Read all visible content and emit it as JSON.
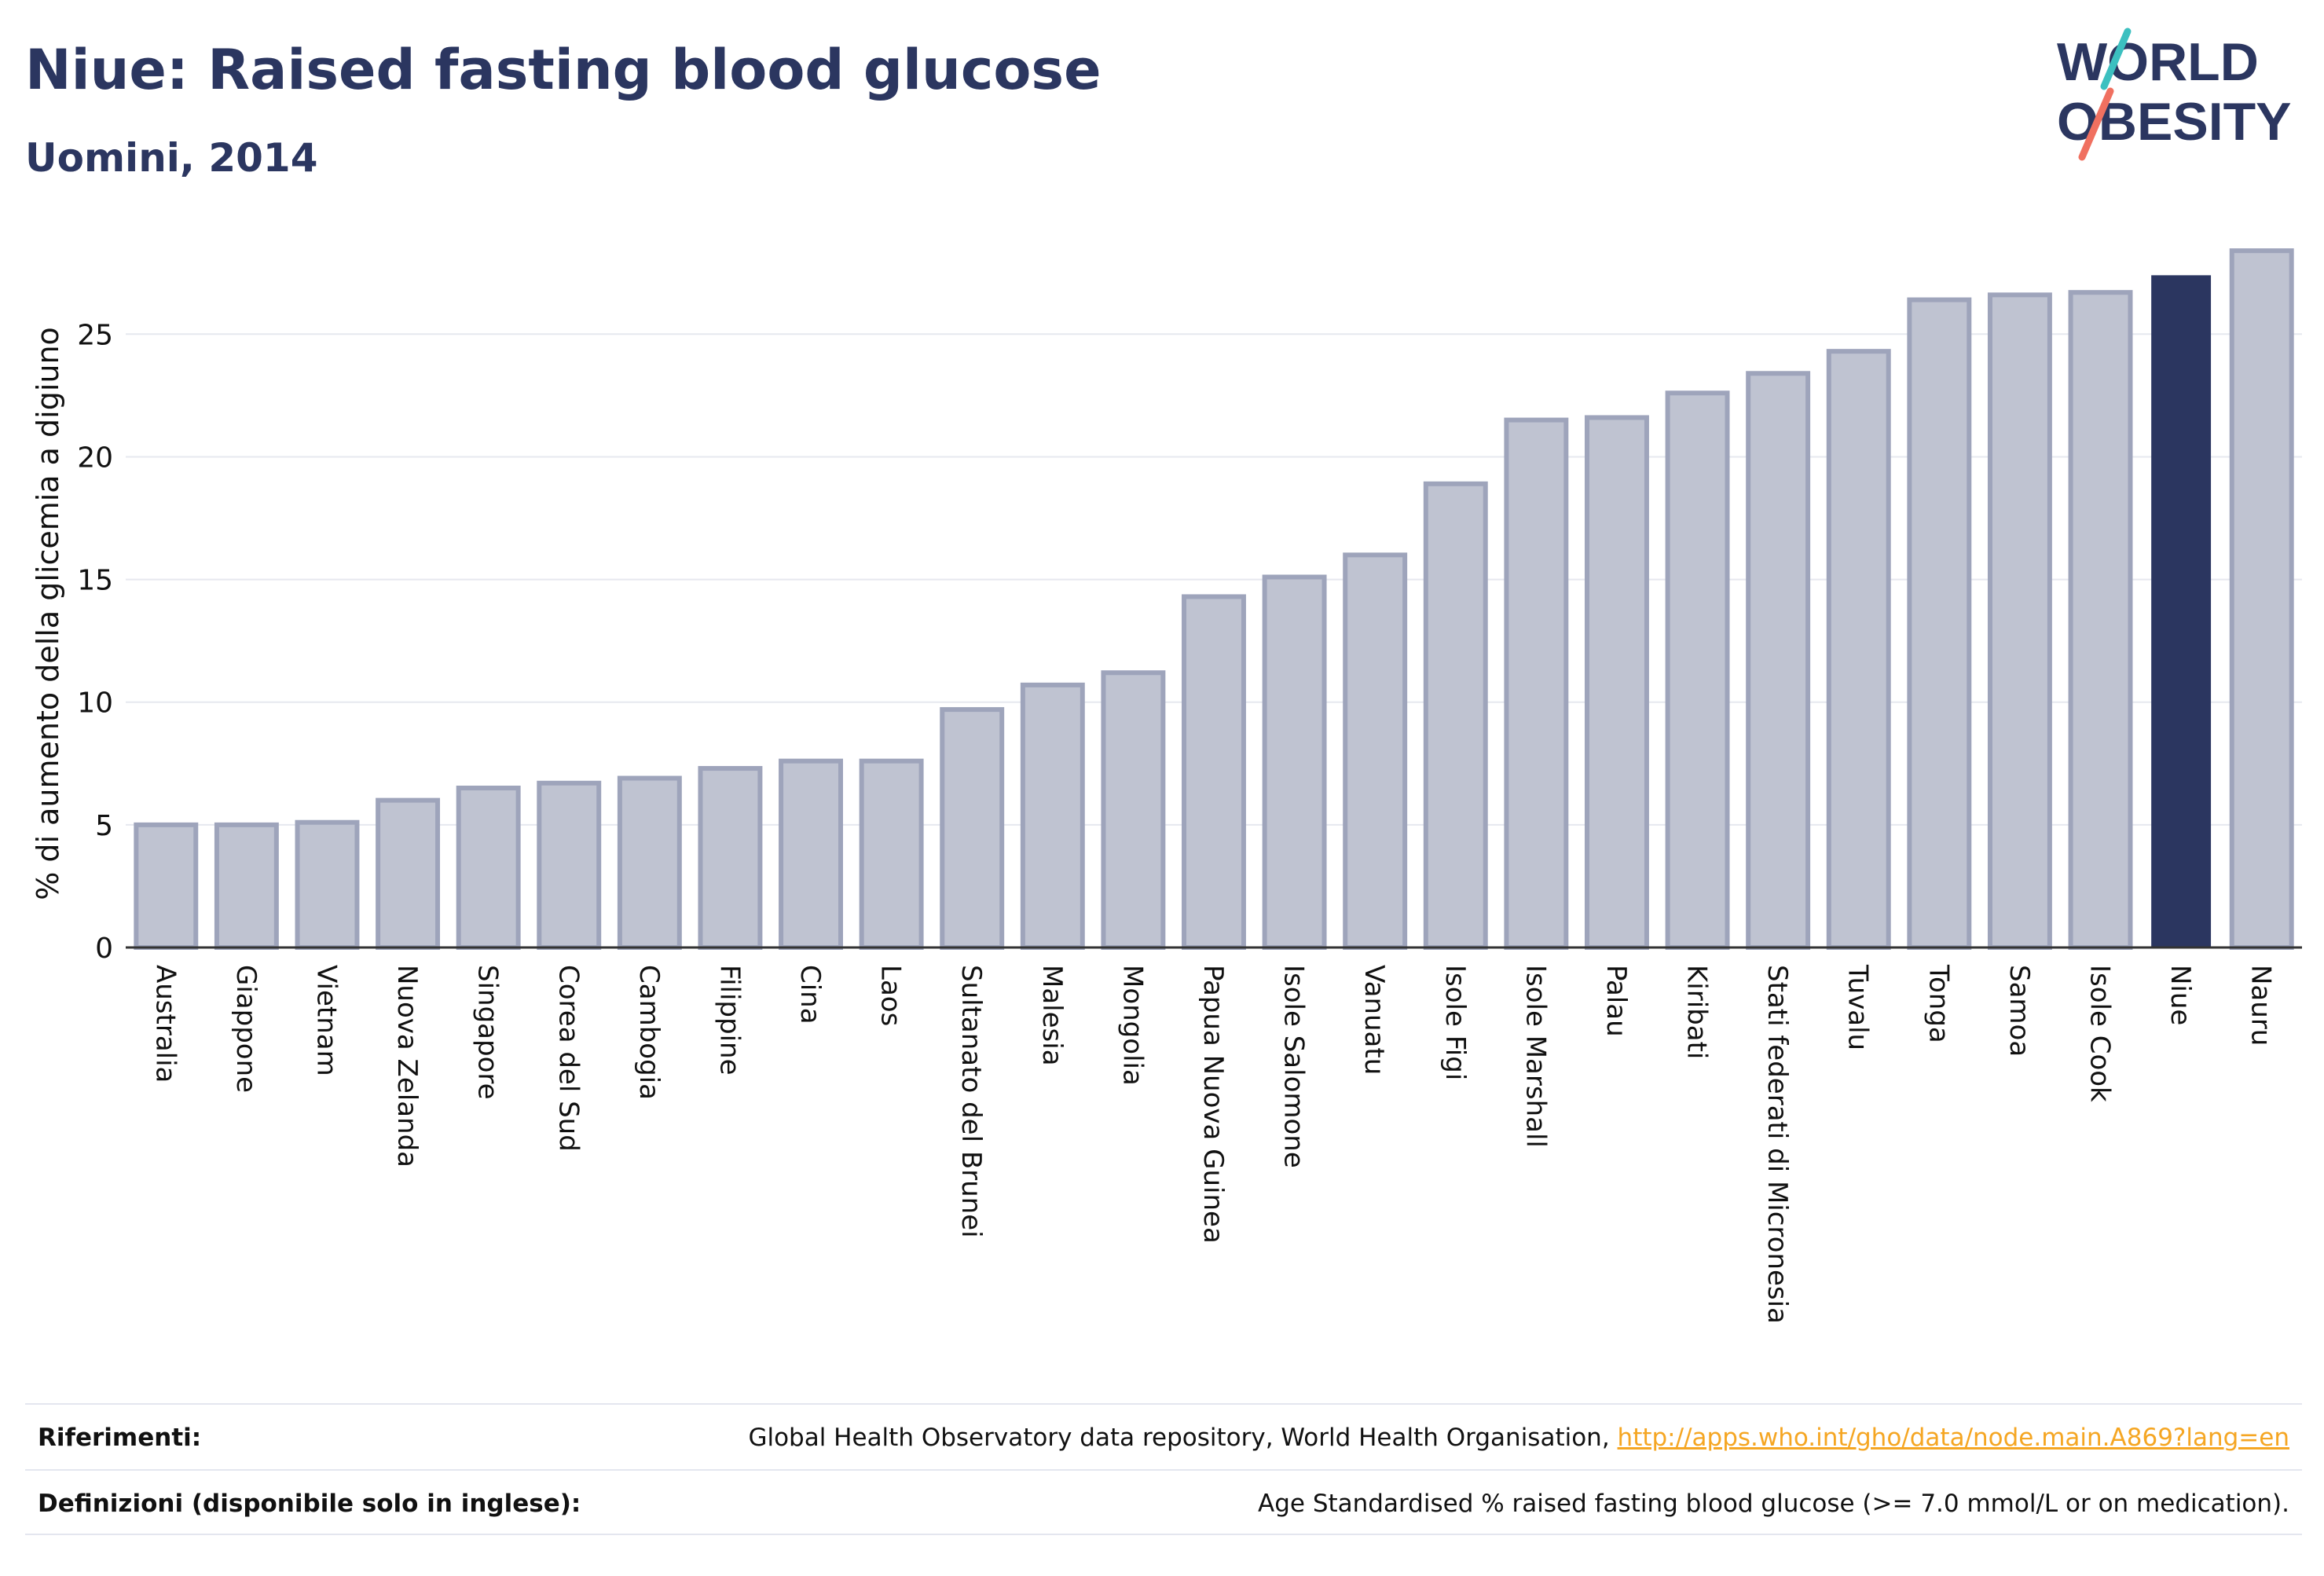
{
  "header": {
    "title": "Niue: Raised fasting blood glucose",
    "subtitle": "Uomini, 2014"
  },
  "logo": {
    "line1": "WORLD",
    "line2": "OBESITY",
    "slash_colors": [
      "#3cc0c0",
      "#f07060"
    ]
  },
  "colors": {
    "bar": "#bfc3d1",
    "bar_stroke": "#9ea4bb",
    "highlight": "#2b3660",
    "text": "#2b3660",
    "link": "#f5a623"
  },
  "chart_data": {
    "type": "bar",
    "title": "Niue: Raised fasting blood glucose",
    "subtitle": "Uomini, 2014",
    "xlabel": "",
    "ylabel": "% di aumento della glicemia a digiuno",
    "ylim": [
      0,
      28.5
    ],
    "yticks": [
      0,
      5,
      10,
      15,
      20,
      25
    ],
    "grid": true,
    "highlight": "Niue",
    "categories": [
      "Australia",
      "Giappone",
      "Vietnam",
      "Nuova Zelanda",
      "Singapore",
      "Corea del Sud",
      "Cambogia",
      "Filippine",
      "Cina",
      "Laos",
      "Sultanato del Brunei",
      "Malesia",
      "Mongolia",
      "Papua Nuova Guinea",
      "Isole Salomone",
      "Vanuatu",
      "Isole Figi",
      "Isole Marshall",
      "Palau",
      "Kiribati",
      "Stati federati di Micronesia",
      "Tuvalu",
      "Tonga",
      "Samoa",
      "Isole Cook",
      "Niue",
      "Nauru"
    ],
    "values": [
      5.0,
      5.0,
      5.1,
      6.0,
      6.5,
      6.7,
      6.9,
      7.3,
      7.6,
      7.6,
      9.7,
      10.7,
      11.2,
      14.3,
      15.1,
      16.0,
      18.9,
      21.5,
      21.6,
      22.6,
      23.4,
      24.3,
      26.4,
      26.6,
      26.7,
      27.4,
      28.4
    ]
  },
  "footer": {
    "references_label": "Riferimenti:",
    "references_text": "Global Health Observatory data repository, World Health Organisation, ",
    "references_link": "http://apps.who.int/gho/data/node.main.A869?lang=en",
    "definitions_label": "Definizioni (disponibile solo in inglese):",
    "definitions_text": "Age Standardised % raised fasting blood glucose (>= 7.0 mmol/L or on medication)."
  }
}
